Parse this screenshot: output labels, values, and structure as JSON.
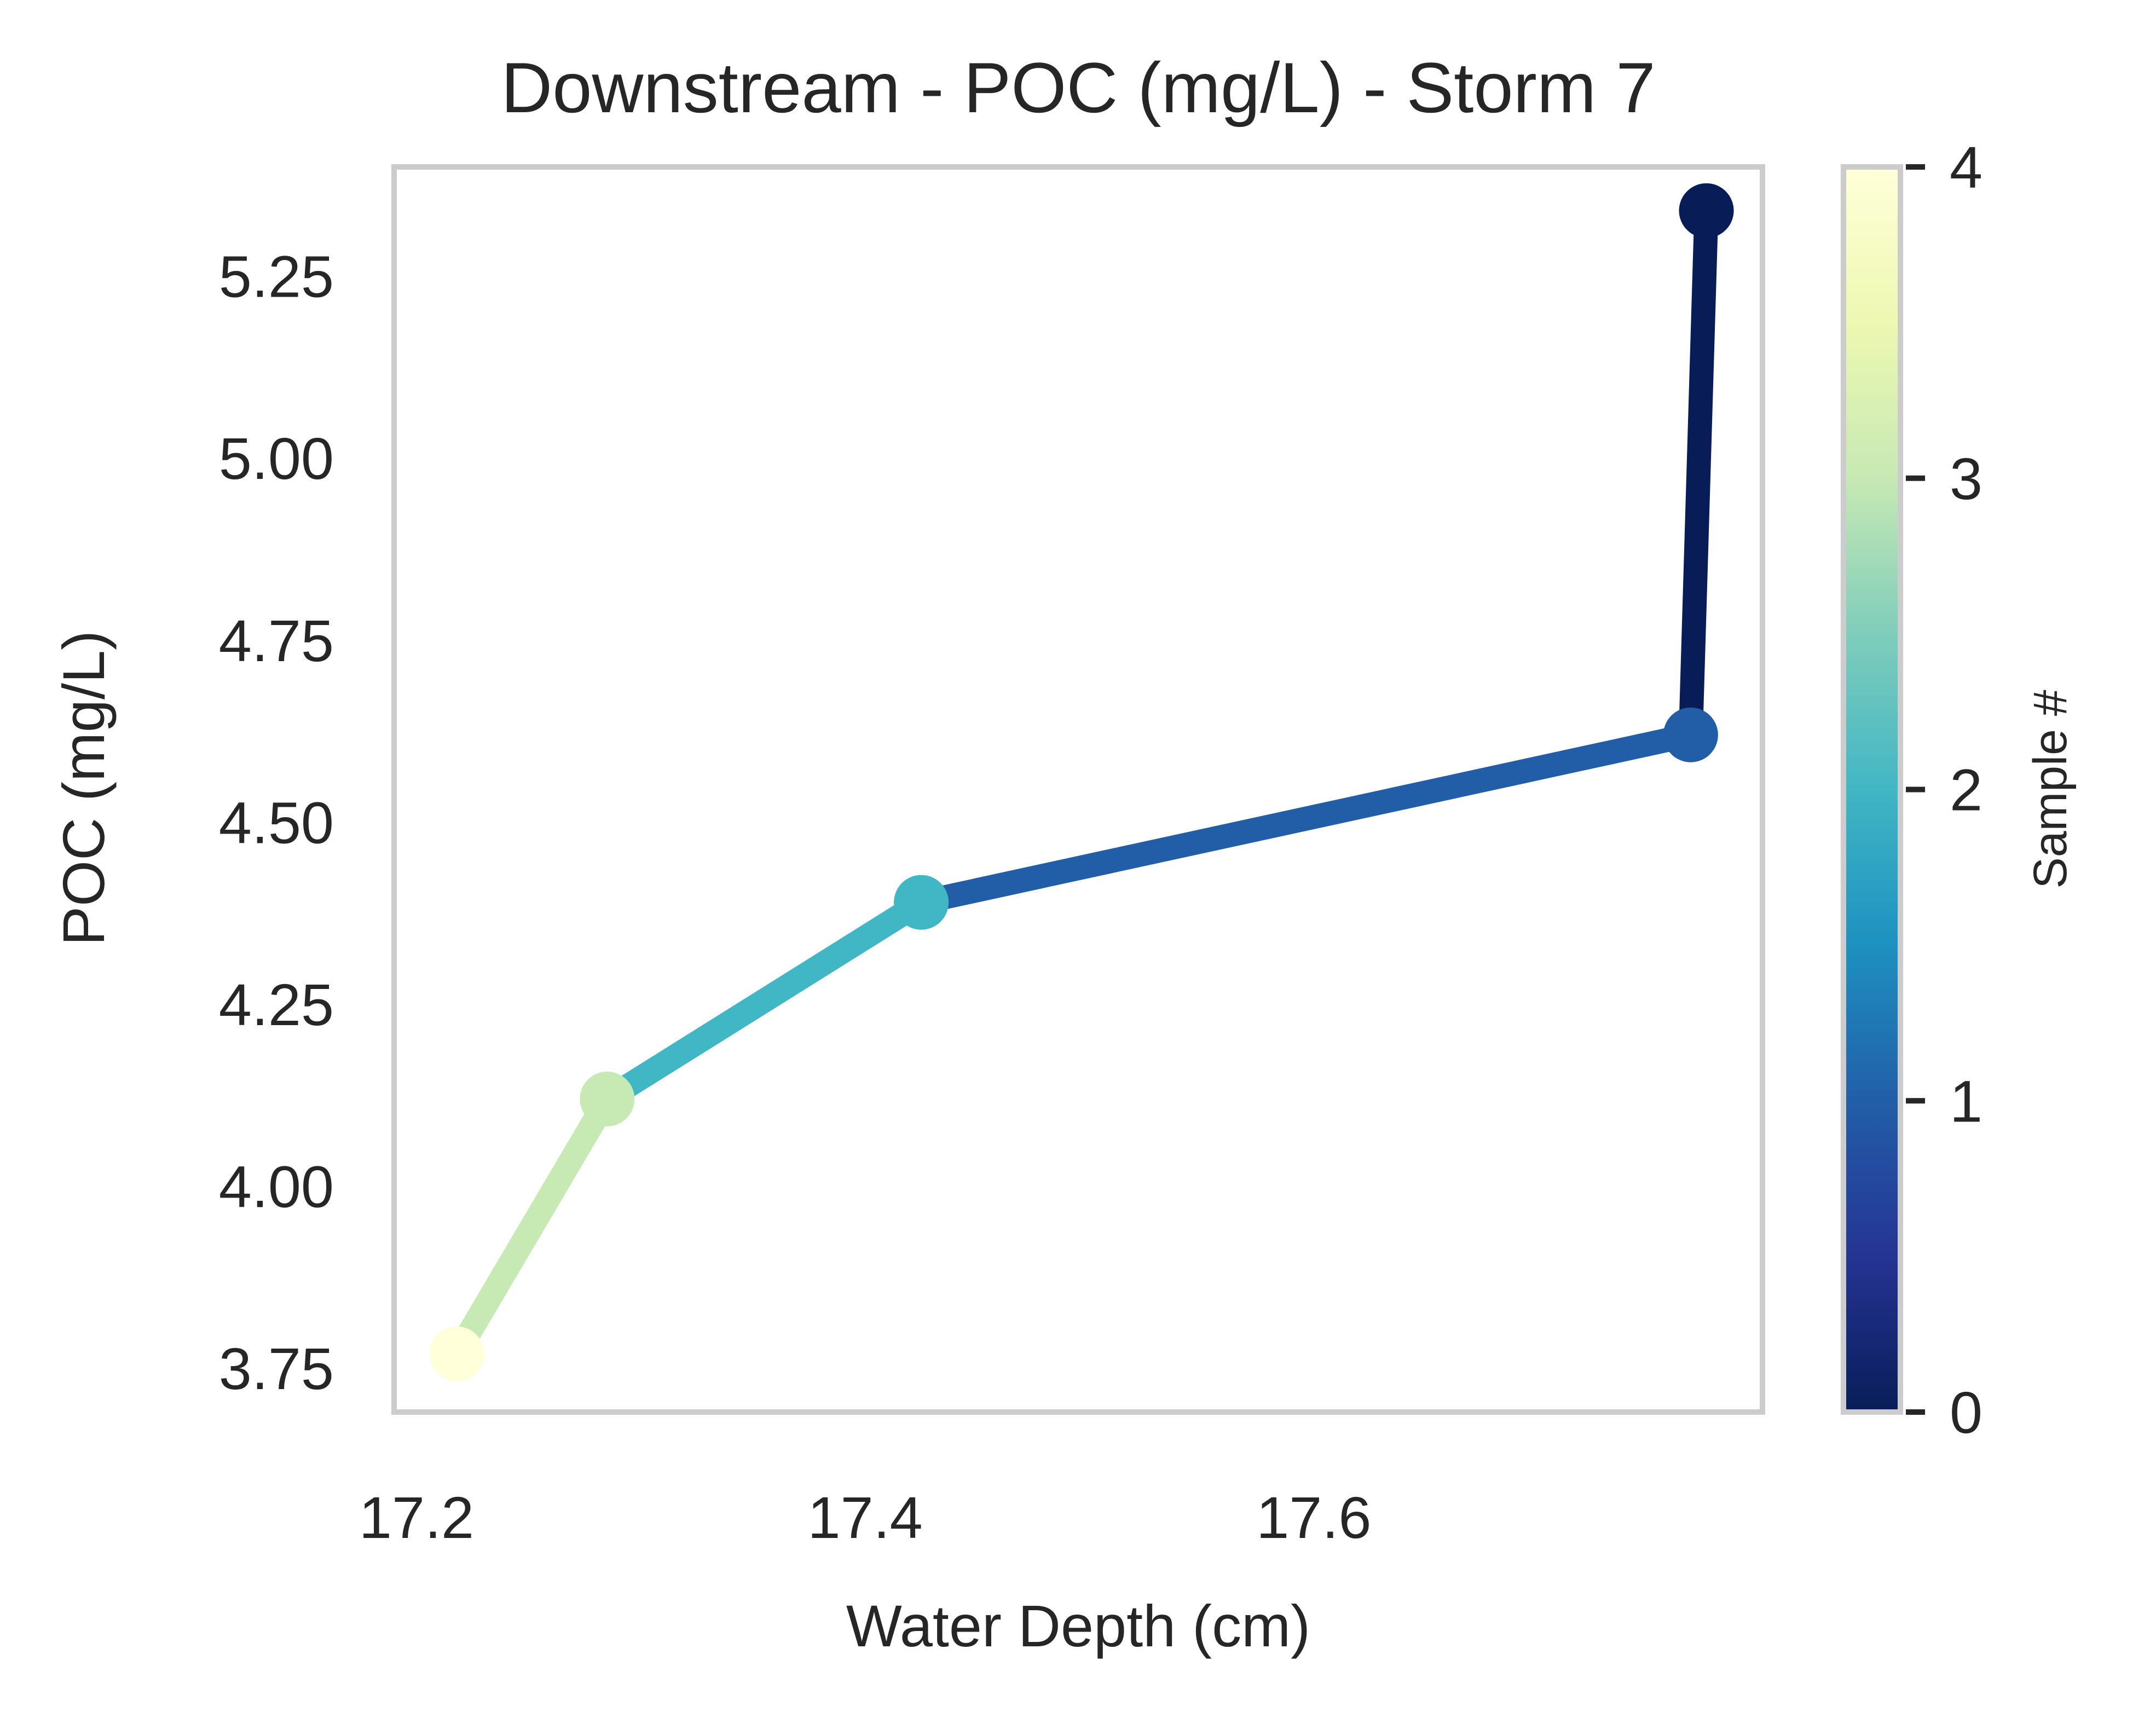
{
  "chart_data": {
    "type": "line",
    "title": "Downstream - POC (mg/L) - Storm 7",
    "xlabel": "Water Depth (cm)",
    "ylabel": "POC (mg/L)",
    "xlim": [
      17.19,
      17.8
    ],
    "ylim": [
      3.69,
      5.4
    ],
    "xticks": [
      "17.2",
      "17.4",
      "17.6"
    ],
    "xtick_values": [
      17.2,
      17.4,
      17.6
    ],
    "yticks": [
      "3.75",
      "4.00",
      "4.25",
      "4.50",
      "4.75",
      "5.00",
      "5.25"
    ],
    "ytick_values": [
      3.75,
      4.0,
      4.25,
      4.5,
      4.75,
      5.0,
      5.25
    ],
    "grid": false,
    "series": [
      {
        "points": [
          {
            "sample": 0,
            "x": 17.775,
            "y": 5.34
          },
          {
            "sample": 1,
            "x": 17.768,
            "y": 4.62
          },
          {
            "sample": 2,
            "x": 17.425,
            "y": 4.39
          },
          {
            "sample": 3,
            "x": 17.285,
            "y": 4.12
          },
          {
            "sample": 4,
            "x": 17.218,
            "y": 3.77
          }
        ]
      }
    ],
    "colorbar": {
      "label": "Sample #",
      "min": 0,
      "max": 4,
      "ticks": [
        "0",
        "1",
        "2",
        "3",
        "4"
      ],
      "tick_values": [
        0,
        1,
        2,
        3,
        4
      ],
      "colormap": "YlGnBu_r",
      "colors": [
        "#081d58",
        "#253494",
        "#225ea8",
        "#1d91c0",
        "#41b6c4",
        "#7fcdbb",
        "#c7e9b4",
        "#edf8b1",
        "#ffffd9"
      ]
    }
  }
}
